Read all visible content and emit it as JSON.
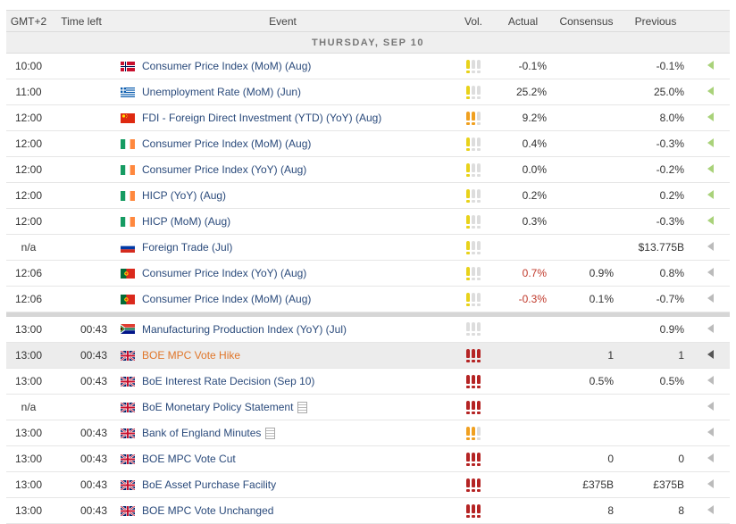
{
  "headers": {
    "time": "GMT+2",
    "left": "Time left",
    "event": "Event",
    "vol": "Vol.",
    "actual": "Actual",
    "consensus": "Consensus",
    "previous": "Previous"
  },
  "day_label": "THURSDAY, SEP 10",
  "colors": {
    "vol_low": "#e8d21a",
    "vol_med": "#f0a020",
    "vol_high": "#b52424",
    "vol_off": "#dddddd",
    "link": "#2a4a7b",
    "highlight": "#e0762a"
  },
  "group1": [
    {
      "time": "10:00",
      "left": "",
      "flag": "NO",
      "event": "Consumer Price Index (MoM) (Aug)",
      "vol": 1,
      "actual": "-0.1%",
      "consensus": "",
      "previous": "-0.1%",
      "arrow": "green"
    },
    {
      "time": "11:00",
      "left": "",
      "flag": "GR",
      "event": "Unemployment Rate (MoM) (Jun)",
      "vol": 1,
      "actual": "25.2%",
      "consensus": "",
      "previous": "25.0%",
      "arrow": "green"
    },
    {
      "time": "12:00",
      "left": "",
      "flag": "CN",
      "event": "FDI - Foreign Direct Investment (YTD) (YoY) (Aug)",
      "vol": 2,
      "actual": "9.2%",
      "consensus": "",
      "previous": "8.0%",
      "arrow": "green"
    },
    {
      "time": "12:00",
      "left": "",
      "flag": "IE",
      "event": "Consumer Price Index (MoM) (Aug)",
      "vol": 1,
      "actual": "0.4%",
      "consensus": "",
      "previous": "-0.3%",
      "arrow": "green"
    },
    {
      "time": "12:00",
      "left": "",
      "flag": "IE",
      "event": "Consumer Price Index (YoY) (Aug)",
      "vol": 1,
      "actual": "0.0%",
      "consensus": "",
      "previous": "-0.2%",
      "arrow": "green"
    },
    {
      "time": "12:00",
      "left": "",
      "flag": "IE",
      "event": "HICP (YoY) (Aug)",
      "vol": 1,
      "actual": "0.2%",
      "consensus": "",
      "previous": "0.2%",
      "arrow": "green"
    },
    {
      "time": "12:00",
      "left": "",
      "flag": "IE",
      "event": "HICP (MoM) (Aug)",
      "vol": 1,
      "actual": "0.3%",
      "consensus": "",
      "previous": "-0.3%",
      "arrow": "green"
    },
    {
      "time": "n/a",
      "left": "",
      "flag": "RU",
      "event": "Foreign Trade (Jul)",
      "vol": 1,
      "actual": "",
      "consensus": "",
      "previous": "$13.775B",
      "arrow": "grey"
    },
    {
      "time": "12:06",
      "left": "",
      "flag": "PT",
      "event": "Consumer Price Index (YoY) (Aug)",
      "vol": 1,
      "actual": "0.7%",
      "actual_red": true,
      "consensus": "0.9%",
      "previous": "0.8%",
      "arrow": "grey"
    },
    {
      "time": "12:06",
      "left": "",
      "flag": "PT",
      "event": "Consumer Price Index (MoM) (Aug)",
      "vol": 1,
      "actual": "-0.3%",
      "actual_red": true,
      "consensus": "0.1%",
      "previous": "-0.7%",
      "arrow": "grey"
    }
  ],
  "group2": [
    {
      "time": "13:00",
      "left": "00:43",
      "flag": "ZA",
      "event": "Manufacturing Production Index (YoY) (Jul)",
      "vol": 0,
      "actual": "",
      "consensus": "",
      "previous": "0.9%",
      "arrow": "grey"
    },
    {
      "time": "13:00",
      "left": "00:43",
      "flag": "GB",
      "event": "BOE MPC Vote Hike",
      "hot": true,
      "vol": 3,
      "actual": "",
      "consensus": "1",
      "previous": "1",
      "arrow": "dark",
      "highlight": true
    },
    {
      "time": "13:00",
      "left": "00:43",
      "flag": "GB",
      "event": "BoE Interest Rate Decision (Sep 10)",
      "vol": 3,
      "actual": "",
      "consensus": "0.5%",
      "previous": "0.5%",
      "arrow": "grey"
    },
    {
      "time": "n/a",
      "left": "",
      "flag": "GB",
      "event": "BoE Monetary Policy Statement",
      "doc": true,
      "vol": 3,
      "actual": "",
      "consensus": "",
      "previous": "",
      "arrow": "grey"
    },
    {
      "time": "13:00",
      "left": "00:43",
      "flag": "GB",
      "event": "Bank of England Minutes",
      "doc": true,
      "vol": 2,
      "actual": "",
      "consensus": "",
      "previous": "",
      "arrow": "grey"
    },
    {
      "time": "13:00",
      "left": "00:43",
      "flag": "GB",
      "event": "BOE MPC Vote Cut",
      "vol": 3,
      "actual": "",
      "consensus": "0",
      "previous": "0",
      "arrow": "grey"
    },
    {
      "time": "13:00",
      "left": "00:43",
      "flag": "GB",
      "event": "BoE Asset Purchase Facility",
      "vol": 3,
      "actual": "",
      "consensus": "£375B",
      "previous": "£375B",
      "arrow": "grey"
    },
    {
      "time": "13:00",
      "left": "00:43",
      "flag": "GB",
      "event": "BOE MPC Vote Unchanged",
      "vol": 3,
      "actual": "",
      "consensus": "8",
      "previous": "8",
      "arrow": "grey"
    }
  ]
}
